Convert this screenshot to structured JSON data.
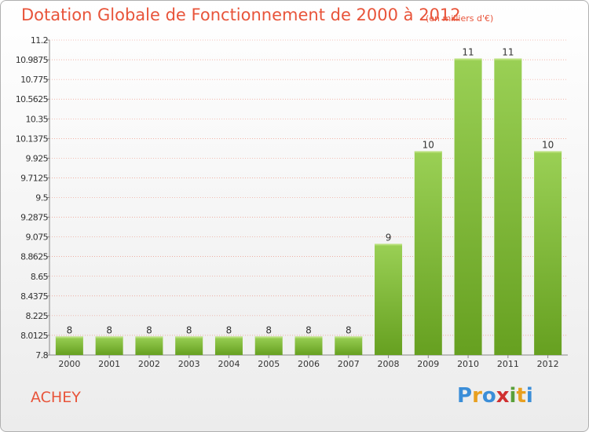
{
  "header": {
    "title": "Dotation Globale de Fonctionnement de 2000 à 2012",
    "unit": "(en milliers d'€)"
  },
  "commune": "ACHEY",
  "logo": {
    "text": "Proxiti",
    "letters": [
      "P",
      "r",
      "o",
      "x",
      "i",
      "t",
      "i"
    ],
    "colors": [
      "#3b8ed8",
      "#e8a020",
      "#3b8ed8",
      "#d03030",
      "#5aa03a",
      "#e8a020",
      "#3b8ed8"
    ]
  },
  "chart_data": {
    "type": "bar",
    "categories": [
      "2000",
      "2001",
      "2002",
      "2003",
      "2004",
      "2005",
      "2006",
      "2007",
      "2008",
      "2009",
      "2010",
      "2011",
      "2012"
    ],
    "values": [
      8,
      8,
      8,
      8,
      8,
      8,
      8,
      8,
      9,
      10,
      11,
      11,
      10
    ],
    "value_labels": [
      "8",
      "8",
      "8",
      "8",
      "8",
      "8",
      "8",
      "8",
      "9",
      "10",
      "11",
      "11",
      "10"
    ],
    "title": "Dotation Globale de Fonctionnement de 2000 à 2012",
    "xlabel": "",
    "ylabel": "",
    "ylim": [
      7.8,
      11.2
    ],
    "yticks": [
      "11.2",
      "10.9875",
      "10.775",
      "10.5625",
      "10.35",
      "10.1375",
      "9.925",
      "9.7125",
      "9.5",
      "9.2875",
      "9.075",
      "8.8625",
      "8.65",
      "8.4375",
      "8.225",
      "8.0125",
      "7.8"
    ],
    "grid": true,
    "bar_color": "#7cc036",
    "bar_color_light": "#9ad055",
    "grid_color": "#e8543a"
  }
}
